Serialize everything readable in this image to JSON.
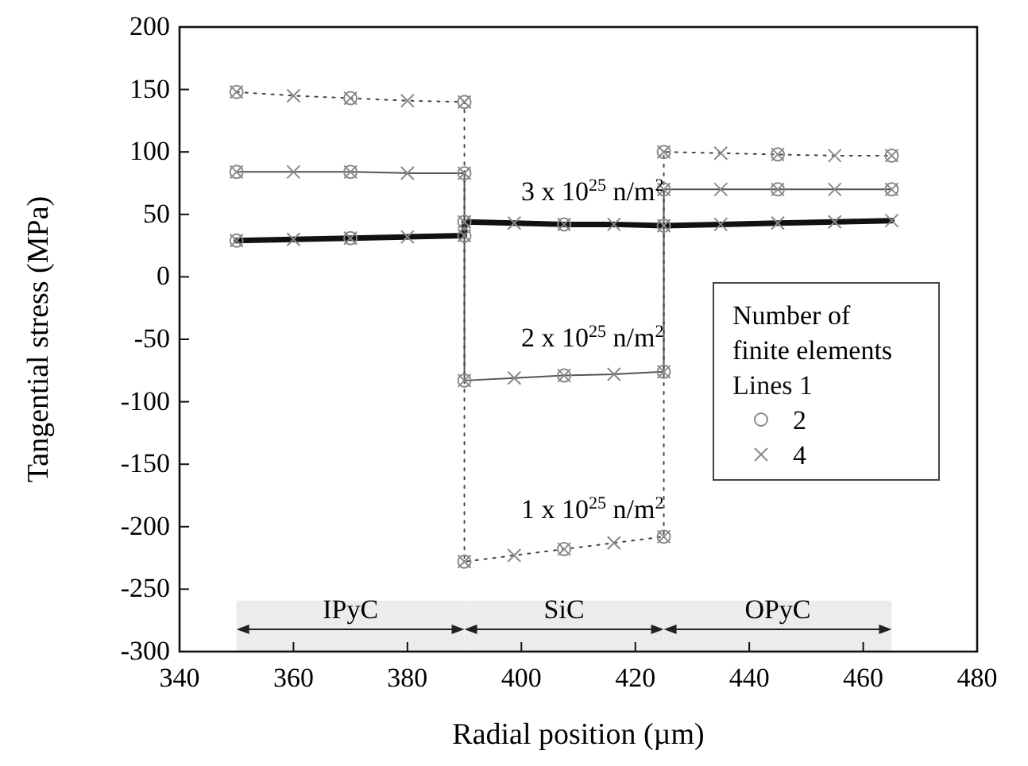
{
  "chart_data": {
    "type": "line",
    "xlabel": "Radial position (µm)",
    "ylabel": "Tangential stress (MPa)",
    "xlim": [
      340,
      480
    ],
    "xticks": [
      340,
      360,
      380,
      400,
      420,
      440,
      460,
      480
    ],
    "ylim": [
      -300,
      200
    ],
    "yticks": [
      -300,
      -250,
      -200,
      -150,
      -100,
      -50,
      0,
      50,
      100,
      150,
      200
    ],
    "grid": false,
    "legend": "right",
    "legend_title": "Number of finite elements",
    "series": [
      {
        "name": "Lines 1",
        "color": "#111111",
        "line_style": "solid",
        "x": [
          350,
          360,
          370,
          380,
          390,
          390,
          398.75,
          407.5,
          416.25,
          425,
          435,
          445,
          455,
          465
        ],
        "values": [
          29,
          30,
          31,
          32,
          33,
          44,
          43,
          42,
          42,
          41,
          42,
          43,
          44,
          45
        ]
      },
      {
        "color": "#555555",
        "line_style": "solid",
        "x": [
          350,
          360,
          370,
          380,
          390,
          390,
          398.75,
          407.5,
          416.25,
          425,
          425,
          435,
          445,
          455,
          465
        ],
        "values": [
          84,
          84,
          84,
          83,
          83,
          -83,
          -81,
          -79,
          -78,
          -76,
          70,
          70,
          70,
          70,
          70
        ]
      },
      {
        "color": "#444444",
        "line_style": "dotted",
        "x": [
          350,
          360,
          370,
          380,
          390,
          390,
          398.75,
          407.5,
          416.25,
          425,
          425,
          435,
          445,
          455,
          465
        ],
        "values": [
          148,
          145,
          143,
          141,
          140,
          -228,
          -223,
          -218,
          -213,
          -208,
          100,
          99,
          98,
          97,
          97
        ]
      },
      {
        "name": "2",
        "type": "scatter",
        "marker": "circle",
        "color": "#888888",
        "x": [
          350,
          370,
          390,
          390,
          407.5,
          425,
          350,
          370,
          390,
          390,
          407.5,
          425,
          425,
          445,
          465,
          350,
          370,
          390,
          390,
          407.5,
          425,
          425,
          445,
          465
        ],
        "values": [
          29,
          31,
          33,
          44,
          42,
          41,
          84,
          84,
          83,
          -83,
          -79,
          -76,
          70,
          70,
          70,
          148,
          143,
          140,
          -228,
          -218,
          -208,
          100,
          98,
          97
        ]
      },
      {
        "name": "4",
        "type": "scatter",
        "marker": "cross",
        "color": "#888888",
        "x": [
          350,
          360,
          370,
          380,
          390,
          390,
          398.75,
          407.5,
          416.25,
          425,
          435,
          445,
          455,
          465,
          350,
          360,
          370,
          380,
          390,
          390,
          398.75,
          407.5,
          416.25,
          425,
          425,
          435,
          445,
          455,
          465,
          350,
          360,
          370,
          380,
          390,
          390,
          398.75,
          407.5,
          416.25,
          425,
          425,
          435,
          445,
          455,
          465
        ],
        "values": [
          29,
          30,
          31,
          32,
          33,
          44,
          43,
          42,
          42,
          41,
          42,
          43,
          44,
          45,
          84,
          84,
          84,
          83,
          83,
          -83,
          -81,
          -79,
          -78,
          -76,
          70,
          70,
          70,
          70,
          70,
          148,
          145,
          143,
          141,
          140,
          -228,
          -223,
          -218,
          -213,
          -208,
          100,
          99,
          98,
          97,
          97
        ]
      }
    ],
    "annotations": [
      "3 x 10$^{25}$ n/m$^{2}$",
      "2 x 10$^{25}$ n/m$^{2}$",
      "1 x 10$^{25}$ n/m$^{2}$"
    ],
    "bands": [
      {
        "axis": "x",
        "from": 350,
        "to": 390,
        "label": "IPyC",
        "color": "#ececec"
      },
      {
        "axis": "x",
        "from": 390,
        "to": 425,
        "label": "SiC",
        "color": "#ececec"
      },
      {
        "axis": "x",
        "from": 425,
        "to": 465,
        "label": "OPyC",
        "color": "#ececec"
      }
    ]
  }
}
